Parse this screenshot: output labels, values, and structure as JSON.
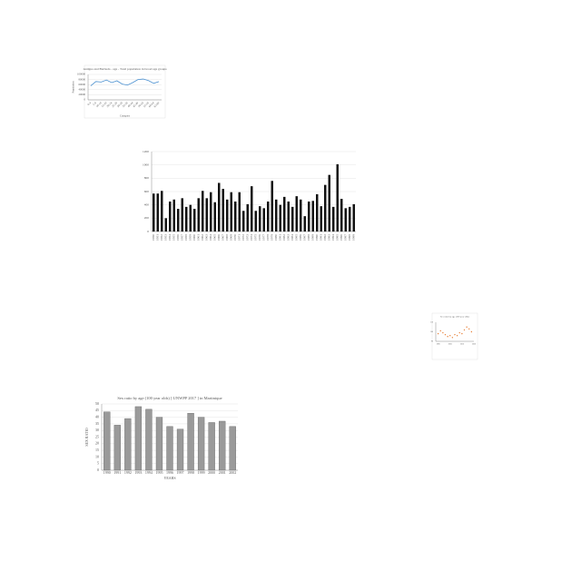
{
  "chart_data": [
    {
      "type": "line",
      "title": "Antigua and Barbuda - age - Total population in broad age groups",
      "x_label": "Category",
      "y_label": "Population",
      "categories": [
        "0-4",
        "5-9",
        "10-14",
        "15-19",
        "20-24",
        "25-29",
        "30-34",
        "35-39",
        "40-44",
        "45-49",
        "50-54",
        "55-59",
        "60-64",
        "65-69"
      ],
      "values": [
        55000,
        72000,
        70000,
        78000,
        68000,
        75000,
        62000,
        58000,
        68000,
        80000,
        82000,
        76000,
        65000,
        72000
      ],
      "color": "#4a90d0",
      "ylim": [
        0,
        100000
      ],
      "yticks": [
        0,
        20000,
        40000,
        60000,
        80000,
        100000
      ],
      "grid": true
    },
    {
      "type": "bar",
      "categories": [
        "1950",
        "1951",
        "1952",
        "1953",
        "1954",
        "1955",
        "1956",
        "1957",
        "1958",
        "1959",
        "1960",
        "1961",
        "1962",
        "1963",
        "1964",
        "1965",
        "1966",
        "1967",
        "1968",
        "1969",
        "1970",
        "1971",
        "1972",
        "1973",
        "1974",
        "1975",
        "1976",
        "1977",
        "1978",
        "1979",
        "1980",
        "1981",
        "1982",
        "1983",
        "1984",
        "1985",
        "1986",
        "1987",
        "1988",
        "1989",
        "1990",
        "1991",
        "1992",
        "1993",
        "1994",
        "1995",
        "1996",
        "1997",
        "1998",
        "1999"
      ],
      "values": [
        570,
        570,
        610,
        200,
        450,
        480,
        340,
        500,
        370,
        400,
        340,
        500,
        610,
        500,
        590,
        440,
        730,
        640,
        480,
        590,
        450,
        590,
        310,
        410,
        680,
        310,
        380,
        350,
        450,
        760,
        480,
        400,
        520,
        450,
        370,
        530,
        480,
        230,
        450,
        460,
        560,
        380,
        700,
        850,
        370,
        1010,
        490,
        350,
        370,
        410
      ],
      "color": "#111111",
      "ylim": [
        0,
        1200
      ],
      "yticks": [
        0,
        200,
        400,
        600,
        800,
        1000,
        1200
      ],
      "grid": true
    },
    {
      "type": "scatter",
      "title": "Sex ratio by age (100 year olds)",
      "x": [
        1990,
        1992,
        1994,
        1996,
        1998,
        2000,
        2002,
        2004,
        2006,
        2008,
        2010,
        2012,
        2014,
        2016,
        2018
      ],
      "values": [
        98,
        101,
        99,
        97,
        95,
        96,
        94,
        97,
        96,
        99,
        98,
        102,
        105,
        103,
        100
      ],
      "color": "#e8823a",
      "xlim": [
        1988,
        2020
      ],
      "xticks": [
        1990,
        2000,
        2010,
        2020
      ],
      "ylim": [
        90,
        110
      ],
      "yticks": [
        90,
        100,
        110
      ],
      "grid": false
    },
    {
      "type": "bar",
      "title": "Sex ratio by age (100 year olds) [ UNWPP 2017 ] in Martinique",
      "x_label": "YEARS",
      "y_label": "SEX RATIO",
      "categories": [
        "1990",
        "1991",
        "1992",
        "1993",
        "1994",
        "1995",
        "1996",
        "1997",
        "1998",
        "1999",
        "2000",
        "2001",
        "2002"
      ],
      "values": [
        44,
        34,
        39,
        48,
        46,
        40,
        33,
        31,
        43,
        40,
        36,
        37,
        33
      ],
      "color": "#9a9a9a",
      "ylim": [
        0,
        50
      ],
      "yticks": [
        0,
        5,
        10,
        15,
        20,
        25,
        30,
        35,
        40,
        45,
        50
      ],
      "grid": true
    }
  ]
}
